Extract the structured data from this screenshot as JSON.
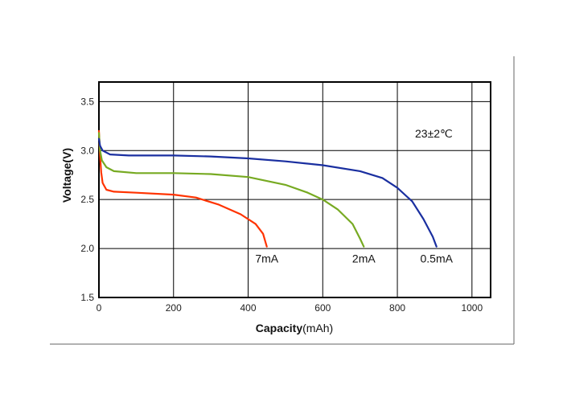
{
  "chart_data": {
    "type": "line",
    "xlabel_bold": "Capacity",
    "xlabel_unit": "(mAh)",
    "ylabel": "Voltage(V)",
    "xlim": [
      0,
      1050
    ],
    "ylim": [
      1.5,
      3.7
    ],
    "x_ticks": [
      0,
      200,
      400,
      600,
      800,
      1000
    ],
    "y_ticks": [
      1.5,
      2.0,
      2.5,
      3.0,
      3.5
    ],
    "x_tick_labels": [
      "0",
      "200",
      "400",
      "600",
      "800",
      "1000"
    ],
    "y_tick_labels": [
      "1.5",
      "2.0",
      "2.5",
      "3.0",
      "3.5"
    ],
    "grid": true,
    "annotation": "23±2℃",
    "series": [
      {
        "name": "7mA",
        "color": "#ff3300",
        "points": [
          [
            0,
            3.2
          ],
          [
            3,
            2.95
          ],
          [
            6,
            2.78
          ],
          [
            10,
            2.67
          ],
          [
            20,
            2.6
          ],
          [
            40,
            2.58
          ],
          [
            100,
            2.57
          ],
          [
            200,
            2.55
          ],
          [
            260,
            2.52
          ],
          [
            320,
            2.45
          ],
          [
            380,
            2.35
          ],
          [
            420,
            2.25
          ],
          [
            440,
            2.15
          ],
          [
            450,
            2.02
          ]
        ]
      },
      {
        "name": "2mA",
        "color": "#77aa22",
        "points": [
          [
            0,
            3.18
          ],
          [
            3,
            3.0
          ],
          [
            8,
            2.9
          ],
          [
            20,
            2.83
          ],
          [
            40,
            2.79
          ],
          [
            100,
            2.77
          ],
          [
            200,
            2.77
          ],
          [
            300,
            2.76
          ],
          [
            400,
            2.73
          ],
          [
            500,
            2.65
          ],
          [
            560,
            2.57
          ],
          [
            600,
            2.5
          ],
          [
            640,
            2.4
          ],
          [
            680,
            2.25
          ],
          [
            700,
            2.1
          ],
          [
            710,
            2.02
          ]
        ]
      },
      {
        "name": "0.5mA",
        "color": "#1a2fa0",
        "points": [
          [
            0,
            3.12
          ],
          [
            3,
            3.05
          ],
          [
            10,
            3.0
          ],
          [
            30,
            2.96
          ],
          [
            80,
            2.95
          ],
          [
            200,
            2.95
          ],
          [
            300,
            2.94
          ],
          [
            400,
            2.92
          ],
          [
            500,
            2.89
          ],
          [
            600,
            2.85
          ],
          [
            700,
            2.79
          ],
          [
            760,
            2.72
          ],
          [
            800,
            2.62
          ],
          [
            840,
            2.48
          ],
          [
            870,
            2.3
          ],
          [
            895,
            2.12
          ],
          [
            905,
            2.02
          ]
        ]
      }
    ]
  }
}
